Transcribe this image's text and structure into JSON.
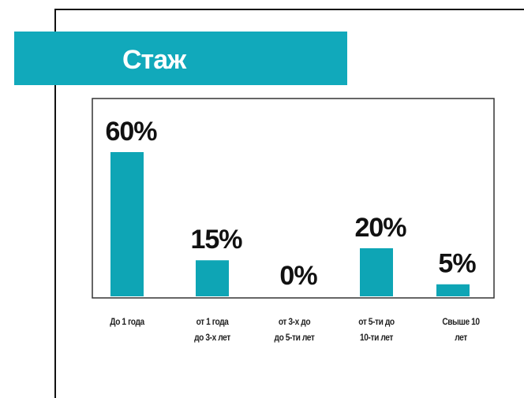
{
  "chart_data": {
    "type": "bar",
    "title": "Стаж",
    "categories": [
      "До 1 года",
      "от 1 года\nдо 3-х лет",
      "от 3-х до\nдо 5-ти лет",
      "от 5-ти до\n10-ти лет",
      "Свыше 10\nлет"
    ],
    "values": [
      60,
      15,
      0,
      20,
      5
    ],
    "value_labels": [
      "60%",
      "15%",
      "0%",
      "20%",
      "5%"
    ],
    "color": "#0ea5b5"
  }
}
